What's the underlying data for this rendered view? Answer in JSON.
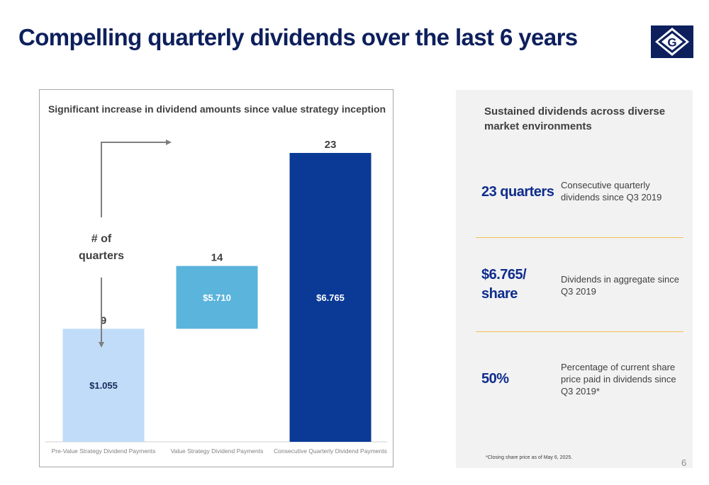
{
  "title": "Compelling quarterly dividends over the last 6 years",
  "logo": {
    "icon": "g-diamond-logo-icon",
    "letter": "G",
    "color": "#0d1f5c"
  },
  "chart_data": {
    "type": "bar",
    "title": "Significant increase in dividend amounts since value strategy inception",
    "categories": [
      "Pre-Value Strategy Dividend Payments",
      "Value Strategy Dividend Payments",
      "Consecutive Quarterly Dividend Payments"
    ],
    "bars": [
      {
        "category": "Pre-Value Strategy Dividend Payments",
        "quarters": 9,
        "base": 0,
        "value_label": "$1.055",
        "top_label": "9",
        "color": "#c0dcf8",
        "label_color": "#1a2a5c"
      },
      {
        "category": "Value Strategy Dividend Payments",
        "quarters": 14,
        "base": 9,
        "value_label": "$5.710",
        "top_label": "14",
        "color": "#5ab4dc",
        "label_color": "#ffffff"
      },
      {
        "category": "Consecutive Quarterly Dividend Payments",
        "quarters": 23,
        "base": 0,
        "value_label": "$6.765",
        "top_label": "23",
        "color": "#0a3a96",
        "label_color": "#ffffff"
      }
    ],
    "annotation": "# of\nquarters",
    "ylim": [
      0,
      23
    ]
  },
  "panel": {
    "heading": "Sustained dividends across diverse market environments",
    "stats": [
      {
        "value": "23 quarters",
        "description": "Consecutive quarterly dividends since Q3 2019"
      },
      {
        "value": "$6.765/ share",
        "description": "Dividends in aggregate since Q3 2019"
      },
      {
        "value": "50%",
        "description": "Percentage of current share price paid in dividends since Q3 2019*"
      }
    ],
    "footnote": "*Closing share price as of May 6, 2025.",
    "page_number": "6"
  }
}
